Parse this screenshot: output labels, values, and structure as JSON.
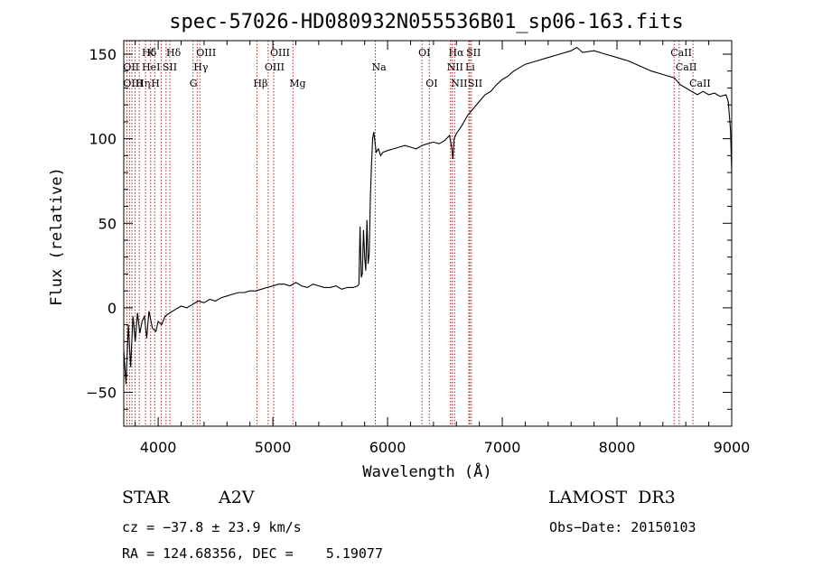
{
  "chart_data": {
    "type": "line",
    "title": "spec-57026-HD080932N055536B01_sp06-163.fits",
    "xlabel": "Wavelength (Å)",
    "ylabel": "Flux (relative)",
    "xlim": [
      3700,
      9000
    ],
    "ylim": [
      -70,
      158
    ],
    "x_ticks": [
      4000,
      5000,
      6000,
      7000,
      8000,
      9000
    ],
    "y_ticks": [
      -50,
      0,
      50,
      100,
      150
    ],
    "grid": false,
    "series": [
      {
        "x": [
          3700,
          3720,
          3740,
          3760,
          3780,
          3800,
          3820,
          3840,
          3860,
          3880,
          3900,
          3920,
          3950,
          3980,
          4000,
          4030,
          4060,
          4100,
          4150,
          4200,
          4250,
          4300,
          4350,
          4400,
          4450,
          4500,
          4550,
          4600,
          4650,
          4700,
          4750,
          4800,
          4850,
          4900,
          4950,
          5000,
          5050,
          5100,
          5150,
          5200,
          5250,
          5300,
          5350,
          5400,
          5450,
          5500,
          5550,
          5600,
          5650,
          5700,
          5740,
          5750,
          5760,
          5770,
          5780,
          5790,
          5800,
          5810,
          5820,
          5830,
          5840,
          5850,
          5860,
          5870,
          5880,
          5890,
          5900,
          5920,
          5940,
          5960,
          6000,
          6050,
          6100,
          6150,
          6200,
          6250,
          6300,
          6350,
          6400,
          6450,
          6500,
          6540,
          6560,
          6570,
          6580,
          6600,
          6650,
          6700,
          6750,
          6800,
          6850,
          6900,
          6950,
          7000,
          7050,
          7100,
          7200,
          7300,
          7400,
          7500,
          7600,
          7650,
          7700,
          7800,
          7900,
          8000,
          8100,
          8200,
          8300,
          8400,
          8500,
          8550,
          8600,
          8650,
          8700,
          8750,
          8800,
          8850,
          8900,
          8950,
          8970,
          8990,
          9000
        ],
        "y": [
          -25,
          -45,
          -10,
          -35,
          -5,
          -20,
          -3,
          -15,
          -8,
          -5,
          -18,
          -2,
          -12,
          -14,
          -8,
          -10,
          -5,
          -3,
          -1,
          1,
          0,
          2,
          4,
          3,
          5,
          4,
          6,
          7,
          8,
          9,
          9,
          10,
          10,
          11,
          12,
          13,
          14,
          14,
          13,
          15,
          13,
          12,
          14,
          13,
          12,
          12,
          13,
          11,
          12,
          12,
          13,
          14,
          48,
          18,
          20,
          46,
          30,
          22,
          52,
          26,
          32,
          65,
          85,
          100,
          104,
          98,
          92,
          94,
          90,
          92,
          93,
          94,
          95,
          96,
          95,
          94,
          96,
          97,
          98,
          97,
          99,
          102,
          94,
          88,
          100,
          103,
          108,
          114,
          118,
          122,
          126,
          128,
          132,
          135,
          137,
          140,
          144,
          146,
          148,
          150,
          152,
          154,
          151,
          152,
          150,
          148,
          146,
          143,
          140,
          138,
          136,
          132,
          130,
          128,
          126,
          128,
          126,
          127,
          125,
          126,
          122,
          105,
          80
        ]
      }
    ],
    "annotations": [
      {
        "text": "Hδ",
        "x": 3889,
        "row": 1
      },
      {
        "text": "K",
        "x": 3934,
        "row": 1
      },
      {
        "text": "Hδ",
        "x": 4102,
        "row": 1
      },
      {
        "text": "OIII",
        "x": 4363,
        "row": 1
      },
      {
        "text": "OIII",
        "x": 5007,
        "row": 1
      },
      {
        "text": "OI",
        "x": 6300,
        "row": 1
      },
      {
        "text": "Hα",
        "x": 6563,
        "row": 1
      },
      {
        "text": "SII",
        "x": 6717,
        "row": 1
      },
      {
        "text": "CaII",
        "x": 8498,
        "row": 1
      },
      {
        "text": "OII",
        "x": 3727,
        "row": 2
      },
      {
        "text": "HeI",
        "x": 3889,
        "row": 2
      },
      {
        "text": "SII",
        "x": 4069,
        "row": 2
      },
      {
        "text": "Hγ",
        "x": 4340,
        "row": 2
      },
      {
        "text": "OIII",
        "x": 4959,
        "row": 2
      },
      {
        "text": "Na",
        "x": 5893,
        "row": 2
      },
      {
        "text": "NII",
        "x": 6548,
        "row": 2
      },
      {
        "text": "Li",
        "x": 6708,
        "row": 2
      },
      {
        "text": "CaII",
        "x": 8542,
        "row": 2
      },
      {
        "text": "OIII",
        "x": 3727,
        "row": 3
      },
      {
        "text": "Hη",
        "x": 3835,
        "row": 3
      },
      {
        "text": "H",
        "x": 3970,
        "row": 3
      },
      {
        "text": "G",
        "x": 4304,
        "row": 3
      },
      {
        "text": "Hβ",
        "x": 4861,
        "row": 3
      },
      {
        "text": "Mg",
        "x": 5175,
        "row": 3
      },
      {
        "text": "OI",
        "x": 6364,
        "row": 3
      },
      {
        "text": "NII",
        "x": 6584,
        "row": 3
      },
      {
        "text": "SII",
        "x": 6731,
        "row": 3
      },
      {
        "text": "CaII",
        "x": 8662,
        "row": 3
      }
    ],
    "line_markers_x": [
      3727,
      3750,
      3771,
      3798,
      3835,
      3889,
      3934,
      3970,
      4026,
      4069,
      4102,
      4304,
      4340,
      4363,
      4861,
      4959,
      5007,
      5175,
      5893,
      6300,
      6364,
      6548,
      6563,
      6584,
      6708,
      6717,
      6731,
      8498,
      8542,
      8662
    ]
  },
  "info": {
    "object_type": "STAR",
    "subclass": "A2V",
    "survey": "LAMOST  DR3",
    "cz": "cz = −37.8 ± 23.9 km/s",
    "obs_date": "Obs−Date: 20150103",
    "coords": "RA = 124.68356, DEC =    5.19077"
  },
  "colors": {
    "marker_line": "#b22222",
    "spectrum": "#000000"
  }
}
